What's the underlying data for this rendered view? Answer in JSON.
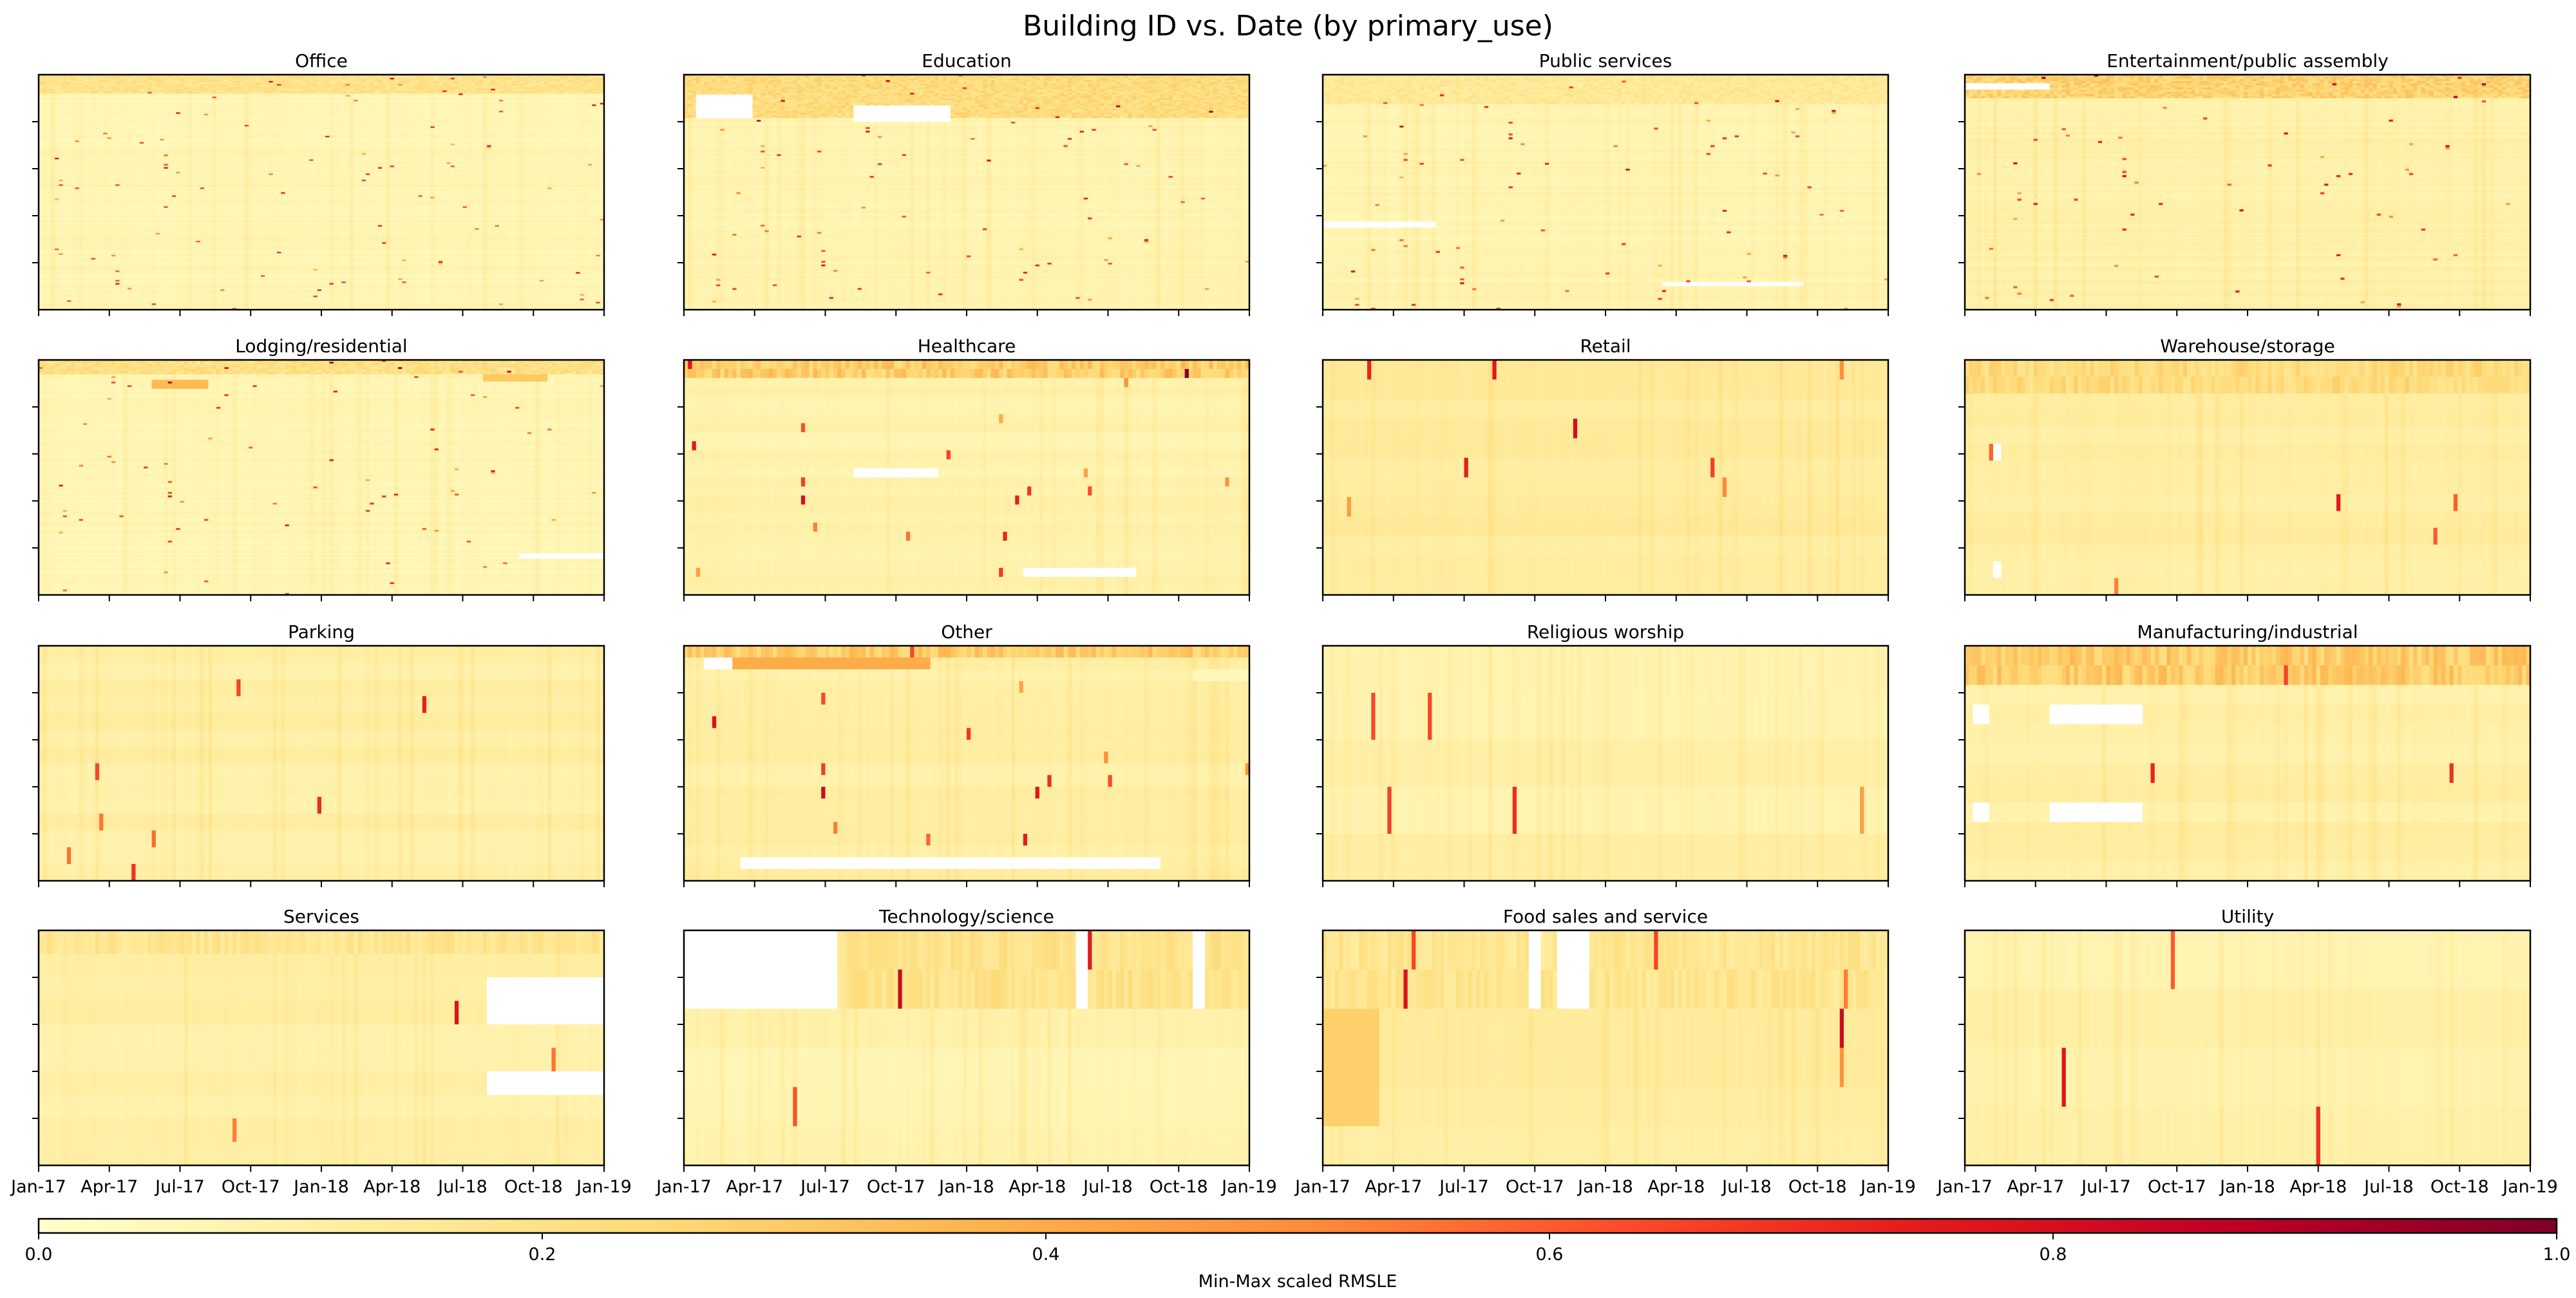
{
  "chart_data": {
    "type": "heatmap",
    "title": "Building ID vs. Date (by primary_use)",
    "layout": {
      "rows": 4,
      "cols": 4
    },
    "x_tick_labels": [
      "Jan-17",
      "Apr-17",
      "Jul-17",
      "Oct-17",
      "Jan-18",
      "Apr-18",
      "Jul-18",
      "Oct-18",
      "Jan-19"
    ],
    "x_range": [
      "2017-01-01",
      "2019-01-01"
    ],
    "y_axis": "Building ID (tick labels hidden)",
    "colorbar": {
      "label": "Min-Max scaled RMSLE",
      "range": [
        0.0,
        1.0
      ],
      "ticks": [
        "0.0",
        "0.2",
        "0.4",
        "0.6",
        "0.8",
        "1.0"
      ],
      "colormap": "YlOrRd",
      "colors": [
        "#ffffcc",
        "#ffeda0",
        "#fed976",
        "#feb24c",
        "#fd8d3c",
        "#fc4e2a",
        "#e31a1c",
        "#bd0026",
        "#800026"
      ]
    },
    "panels": [
      {
        "name": "Office",
        "rows": 150,
        "base": 0.06,
        "header_rows": 0.08,
        "header_value": 0.2,
        "bands": [],
        "white": []
      },
      {
        "name": "Education",
        "rows": 130,
        "base": 0.07,
        "header_rows": 0.18,
        "header_value": 0.24,
        "bands": [],
        "white": [
          [
            0.3,
            0.47,
            0.13,
            0.2
          ],
          [
            0.02,
            0.12,
            0.08,
            0.18
          ]
        ]
      },
      {
        "name": "Public services",
        "rows": 120,
        "base": 0.07,
        "header_rows": 0.12,
        "header_value": 0.16,
        "bands": [],
        "white": [
          [
            0.0,
            0.2,
            0.62,
            0.65
          ],
          [
            0.6,
            0.85,
            0.88,
            0.9
          ]
        ]
      },
      {
        "name": "Entertainment/public assembly",
        "rows": 110,
        "base": 0.09,
        "header_rows": 0.1,
        "header_value": 0.28,
        "bands": [],
        "white": [
          [
            0.0,
            0.15,
            0.03,
            0.06
          ]
        ]
      },
      {
        "name": "Lodging/residential",
        "rows": 130,
        "base": 0.06,
        "header_rows": 0.06,
        "header_value": 0.22,
        "bands": [
          [
            0.2,
            0.3,
            0.08,
            0.12,
            0.35
          ],
          [
            0.78,
            0.9,
            0.06,
            0.09,
            0.3
          ]
        ],
        "white": [
          [
            0.85,
            1.0,
            0.82,
            0.84
          ]
        ]
      },
      {
        "name": "Healthcare",
        "rows": 26,
        "base": 0.08,
        "header_rows": 0.06,
        "header_value": 0.3,
        "bands": [],
        "white": [
          [
            0.3,
            0.45,
            0.45,
            0.5
          ],
          [
            0.6,
            0.7,
            0.86,
            0.9
          ],
          [
            0.7,
            0.8,
            0.86,
            0.9
          ]
        ]
      },
      {
        "name": "Retail",
        "rows": 12,
        "base": 0.12,
        "header_rows": 0,
        "header_value": 0,
        "bands": [],
        "white": []
      },
      {
        "name": "Warehouse/storage",
        "rows": 14,
        "base": 0.11,
        "header_rows": 0.1,
        "header_value": 0.24,
        "bands": [],
        "white": [
          [
            0.05,
            0.06,
            0.3,
            0.38
          ],
          [
            0.05,
            0.06,
            0.8,
            0.9
          ]
        ]
      },
      {
        "name": "Parking",
        "rows": 14,
        "base": 0.1,
        "header_rows": 0,
        "header_value": 0,
        "bands": [],
        "white": []
      },
      {
        "name": "Other",
        "rows": 20,
        "base": 0.1,
        "header_rows": 0.05,
        "header_value": 0.3,
        "bands": [
          [
            0.08,
            0.43,
            0.05,
            0.1,
            0.4
          ],
          [
            0.9,
            1.0,
            0.1,
            0.15,
            0.05
          ]
        ],
        "white": [
          [
            0.1,
            0.84,
            0.9,
            0.95
          ],
          [
            0.03,
            0.08,
            0.05,
            0.1
          ]
        ]
      },
      {
        "name": "Religious worship",
        "rows": 5,
        "base": 0.09,
        "header_rows": 0,
        "header_value": 0,
        "bands": [],
        "white": []
      },
      {
        "name": "Manufacturing/industrial",
        "rows": 12,
        "base": 0.1,
        "header_rows": 0.1,
        "header_value": 0.3,
        "bands": [],
        "white": [
          [
            0.15,
            0.31,
            0.2,
            0.3
          ],
          [
            0.15,
            0.31,
            0.6,
            0.7
          ],
          [
            0.01,
            0.04,
            0.2,
            0.3
          ],
          [
            0.01,
            0.04,
            0.6,
            0.7
          ]
        ]
      },
      {
        "name": "Services",
        "rows": 10,
        "base": 0.1,
        "header_rows": 0.1,
        "header_value": 0.18,
        "bands": [],
        "white": [
          [
            0.79,
            1.0,
            0.13,
            0.33
          ],
          [
            0.79,
            1.0,
            0.57,
            0.67
          ]
        ]
      },
      {
        "name": "Technology/science",
        "rows": 6,
        "base": 0.08,
        "header_rows": 0.33,
        "header_value": 0.2,
        "bands": [],
        "white": [
          [
            0.0,
            0.27,
            0.0,
            0.33
          ],
          [
            0.69,
            0.71,
            0.0,
            0.33
          ],
          [
            0.9,
            0.92,
            0.0,
            0.33
          ]
        ]
      },
      {
        "name": "Food sales and service",
        "rows": 6,
        "base": 0.12,
        "header_rows": 0.33,
        "header_value": 0.18,
        "bands": [
          [
            0.0,
            0.1,
            0.33,
            0.67,
            0.28
          ]
        ],
        "white": [
          [
            0.36,
            0.38,
            0.0,
            0.33
          ],
          [
            0.41,
            0.47,
            0.0,
            0.33
          ]
        ]
      },
      {
        "name": "Utility",
        "rows": 4,
        "base": 0.09,
        "header_rows": 0,
        "header_value": 0,
        "bands": [],
        "white": []
      }
    ]
  }
}
